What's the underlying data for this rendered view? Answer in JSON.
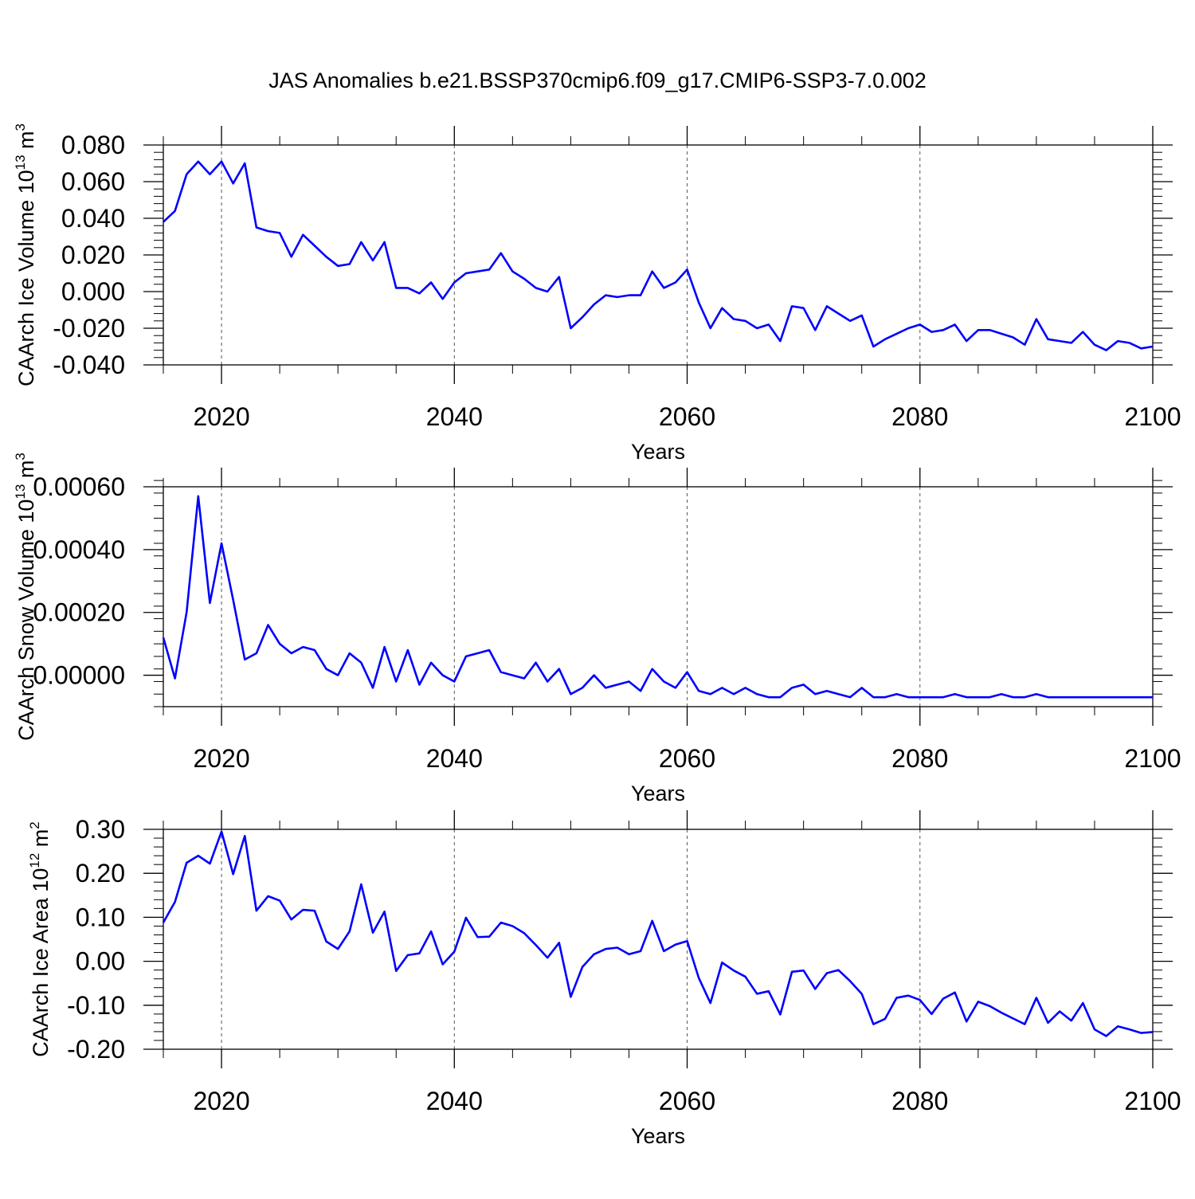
{
  "figure": {
    "title": "JAS Anomalies b.e21.BSSP370cmip6.f09_g17.CMIP6-SSP3-7.0.002"
  },
  "colors": {
    "series": "#0000ff",
    "frame": "#000000",
    "grid": "#555555"
  },
  "chart_data": [
    {
      "type": "line",
      "xlabel": "Years",
      "ylabel_main": "CAArch Ice Volume 10",
      "ylabel_exp": "13",
      "ylabel_unit": " m",
      "ylabel_unit_exp": "3",
      "xlim": [
        2015,
        2100
      ],
      "ylim": [
        -0.04,
        0.08
      ],
      "xticks": [
        2020,
        2040,
        2060,
        2080,
        2100
      ],
      "yticks": [
        -0.04,
        -0.02,
        0.0,
        0.02,
        0.04,
        0.06,
        0.08
      ],
      "ytick_labels": [
        "-0.040",
        "-0.020",
        "0.000",
        "0.020",
        "0.040",
        "0.060",
        "0.080"
      ],
      "x": [
        2015,
        2016,
        2017,
        2018,
        2019,
        2020,
        2021,
        2022,
        2023,
        2024,
        2025,
        2026,
        2027,
        2028,
        2029,
        2030,
        2031,
        2032,
        2033,
        2034,
        2035,
        2036,
        2037,
        2038,
        2039,
        2040,
        2041,
        2042,
        2043,
        2044,
        2045,
        2046,
        2047,
        2048,
        2049,
        2050,
        2051,
        2052,
        2053,
        2054,
        2055,
        2056,
        2057,
        2058,
        2059,
        2060,
        2061,
        2062,
        2063,
        2064,
        2065,
        2066,
        2067,
        2068,
        2069,
        2070,
        2071,
        2072,
        2073,
        2074,
        2075,
        2076,
        2077,
        2078,
        2079,
        2080,
        2081,
        2082,
        2083,
        2084,
        2085,
        2086,
        2087,
        2088,
        2089,
        2090,
        2091,
        2092,
        2093,
        2094,
        2095,
        2096,
        2097,
        2098,
        2099,
        2100
      ],
      "y": [
        0.038,
        0.044,
        0.064,
        0.071,
        0.064,
        0.071,
        0.059,
        0.07,
        0.035,
        0.033,
        0.032,
        0.019,
        0.031,
        0.025,
        0.019,
        0.014,
        0.015,
        0.027,
        0.017,
        0.027,
        0.002,
        0.002,
        -0.001,
        0.005,
        -0.004,
        0.005,
        0.01,
        0.011,
        0.012,
        0.021,
        0.011,
        0.007,
        0.002,
        0.0,
        0.008,
        -0.02,
        -0.014,
        -0.007,
        -0.002,
        -0.003,
        -0.002,
        -0.002,
        0.011,
        0.002,
        0.005,
        0.012,
        -0.006,
        -0.02,
        -0.009,
        -0.015,
        -0.016,
        -0.02,
        -0.018,
        -0.027,
        -0.008,
        -0.009,
        -0.021,
        -0.008,
        -0.012,
        -0.016,
        -0.013,
        -0.03,
        -0.026,
        -0.023,
        -0.02,
        -0.018,
        -0.022,
        -0.021,
        -0.018,
        -0.027,
        -0.021,
        -0.021,
        -0.023,
        -0.025,
        -0.029,
        -0.015,
        -0.026,
        -0.027,
        -0.028,
        -0.022,
        -0.029,
        -0.032,
        -0.027,
        -0.028,
        -0.031,
        -0.03
      ]
    },
    {
      "type": "line",
      "xlabel": "Years",
      "ylabel_main": "CAArch Snow Volume 10",
      "ylabel_exp": "13",
      "ylabel_unit": " m",
      "ylabel_unit_exp": "3",
      "xlim": [
        2015,
        2100
      ],
      "ylim": [
        -0.0001,
        0.0006
      ],
      "xticks": [
        2020,
        2040,
        2060,
        2080,
        2100
      ],
      "yticks": [
        0.0,
        0.0002,
        0.0004,
        0.0006
      ],
      "ytick_labels": [
        "0.00000",
        "0.00020",
        "0.00040",
        "0.00060"
      ],
      "x": [
        2015,
        2016,
        2017,
        2018,
        2019,
        2020,
        2021,
        2022,
        2023,
        2024,
        2025,
        2026,
        2027,
        2028,
        2029,
        2030,
        2031,
        2032,
        2033,
        2034,
        2035,
        2036,
        2037,
        2038,
        2039,
        2040,
        2041,
        2042,
        2043,
        2044,
        2045,
        2046,
        2047,
        2048,
        2049,
        2050,
        2051,
        2052,
        2053,
        2054,
        2055,
        2056,
        2057,
        2058,
        2059,
        2060,
        2061,
        2062,
        2063,
        2064,
        2065,
        2066,
        2067,
        2068,
        2069,
        2070,
        2071,
        2072,
        2073,
        2074,
        2075,
        2076,
        2077,
        2078,
        2079,
        2080,
        2081,
        2082,
        2083,
        2084,
        2085,
        2086,
        2087,
        2088,
        2089,
        2090,
        2091,
        2092,
        2093,
        2094,
        2095,
        2096,
        2097,
        2098,
        2099,
        2100
      ],
      "y": [
        0.00012,
        -1e-05,
        0.0002,
        0.00057,
        0.00023,
        0.00042,
        0.00024,
        5e-05,
        7e-05,
        0.00016,
        0.0001,
        7e-05,
        9e-05,
        8e-05,
        2e-05,
        0.0,
        7e-05,
        4e-05,
        -4e-05,
        9e-05,
        -2e-05,
        8e-05,
        -3e-05,
        4e-05,
        0.0,
        -2e-05,
        6e-05,
        7e-05,
        8e-05,
        1e-05,
        0.0,
        -1e-05,
        4e-05,
        -2e-05,
        2e-05,
        -6e-05,
        -4e-05,
        0.0,
        -4e-05,
        -3e-05,
        -2e-05,
        -5e-05,
        2e-05,
        -2e-05,
        -4e-05,
        1e-05,
        -5e-05,
        -6e-05,
        -4e-05,
        -6e-05,
        -4e-05,
        -6e-05,
        -7e-05,
        -7e-05,
        -4e-05,
        -3e-05,
        -6e-05,
        -5e-05,
        -6e-05,
        -7e-05,
        -4e-05,
        -7e-05,
        -7e-05,
        -6e-05,
        -7e-05,
        -7e-05,
        -7e-05,
        -7e-05,
        -6e-05,
        -7e-05,
        -7e-05,
        -7e-05,
        -6e-05,
        -7e-05,
        -7e-05,
        -6e-05,
        -7e-05,
        -7e-05,
        -7e-05,
        -7e-05,
        -7e-05,
        -7e-05,
        -7e-05,
        -7e-05,
        -7e-05,
        -7e-05
      ]
    },
    {
      "type": "line",
      "xlabel": "Years",
      "ylabel_main": "CAArch Ice Area 10",
      "ylabel_exp": "12",
      "ylabel_unit": " m",
      "ylabel_unit_exp": "2",
      "xlim": [
        2015,
        2100
      ],
      "ylim": [
        -0.2,
        0.3
      ],
      "xticks": [
        2020,
        2040,
        2060,
        2080,
        2100
      ],
      "yticks": [
        -0.2,
        -0.1,
        0.0,
        0.1,
        0.2,
        0.3
      ],
      "ytick_labels": [
        "-0.20",
        "-0.10",
        "0.00",
        "0.10",
        "0.20",
        "0.30"
      ],
      "x": [
        2015,
        2016,
        2017,
        2018,
        2019,
        2020,
        2021,
        2022,
        2023,
        2024,
        2025,
        2026,
        2027,
        2028,
        2029,
        2030,
        2031,
        2032,
        2033,
        2034,
        2035,
        2036,
        2037,
        2038,
        2039,
        2040,
        2041,
        2042,
        2043,
        2044,
        2045,
        2046,
        2047,
        2048,
        2049,
        2050,
        2051,
        2052,
        2053,
        2054,
        2055,
        2056,
        2057,
        2058,
        2059,
        2060,
        2061,
        2062,
        2063,
        2064,
        2065,
        2066,
        2067,
        2068,
        2069,
        2070,
        2071,
        2072,
        2073,
        2074,
        2075,
        2076,
        2077,
        2078,
        2079,
        2080,
        2081,
        2082,
        2083,
        2084,
        2085,
        2086,
        2087,
        2088,
        2089,
        2090,
        2091,
        2092,
        2093,
        2094,
        2095,
        2096,
        2097,
        2098,
        2099,
        2100
      ],
      "y": [
        0.088,
        0.135,
        0.224,
        0.24,
        0.222,
        0.295,
        0.198,
        0.285,
        0.115,
        0.148,
        0.138,
        0.095,
        0.117,
        0.115,
        0.045,
        0.028,
        0.068,
        0.175,
        0.065,
        0.113,
        -0.022,
        0.014,
        0.018,
        0.068,
        -0.007,
        0.022,
        0.099,
        0.055,
        0.056,
        0.088,
        0.08,
        0.064,
        0.037,
        0.008,
        0.042,
        -0.081,
        -0.013,
        0.016,
        0.028,
        0.031,
        0.016,
        0.023,
        0.092,
        0.023,
        0.038,
        0.046,
        -0.038,
        -0.095,
        -0.003,
        -0.021,
        -0.035,
        -0.074,
        -0.068,
        -0.121,
        -0.024,
        -0.021,
        -0.063,
        -0.027,
        -0.02,
        -0.045,
        -0.074,
        -0.143,
        -0.131,
        -0.083,
        -0.078,
        -0.088,
        -0.12,
        -0.085,
        -0.071,
        -0.137,
        -0.092,
        -0.102,
        -0.117,
        -0.13,
        -0.143,
        -0.083,
        -0.14,
        -0.114,
        -0.135,
        -0.095,
        -0.155,
        -0.17,
        -0.148,
        -0.155,
        -0.163,
        -0.161
      ]
    }
  ]
}
